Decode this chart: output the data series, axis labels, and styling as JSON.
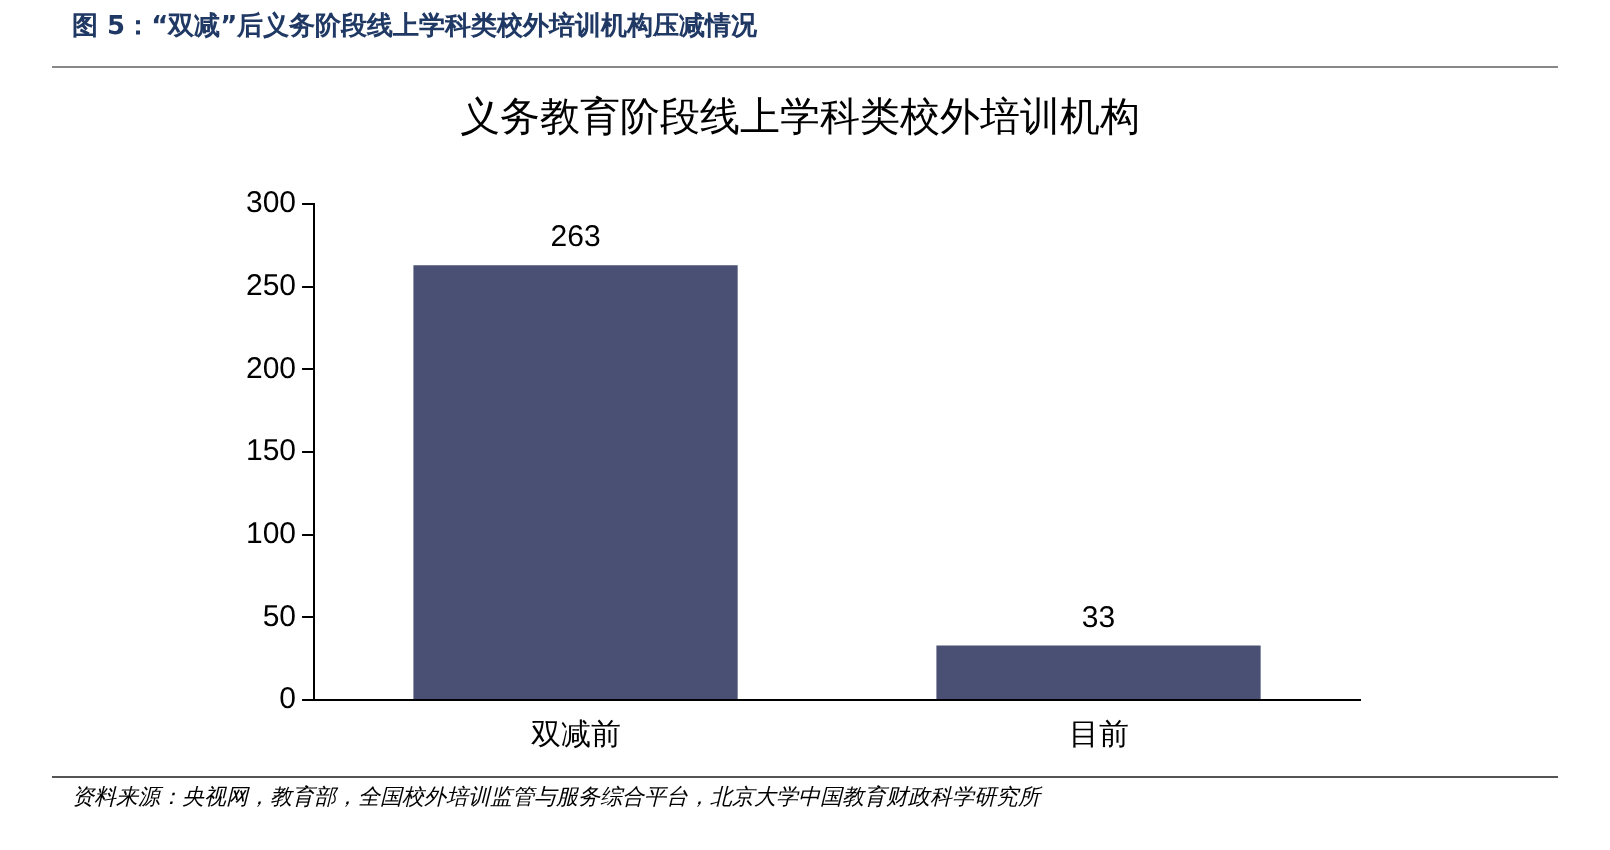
{
  "chart_data": {
    "type": "bar",
    "title": "图 5：“双减”后义务阶段线上学科类校外培训机构压减情况",
    "subtitle": "义务教育阶段线上学科类校外培训机构",
    "categories": [
      "双减前",
      "目前"
    ],
    "values": [
      263,
      33
    ],
    "color": "#4a5073",
    "ylim": [
      0,
      300
    ],
    "yticks": [
      0,
      50,
      100,
      150,
      200,
      250,
      300
    ],
    "grid": false,
    "legend": false,
    "data_labels": true,
    "annotations": [
      "资料来源：央视网，教育部，全国校外培训监管与服务综合平台，北京大学中国教育财政科学研究所"
    ]
  }
}
